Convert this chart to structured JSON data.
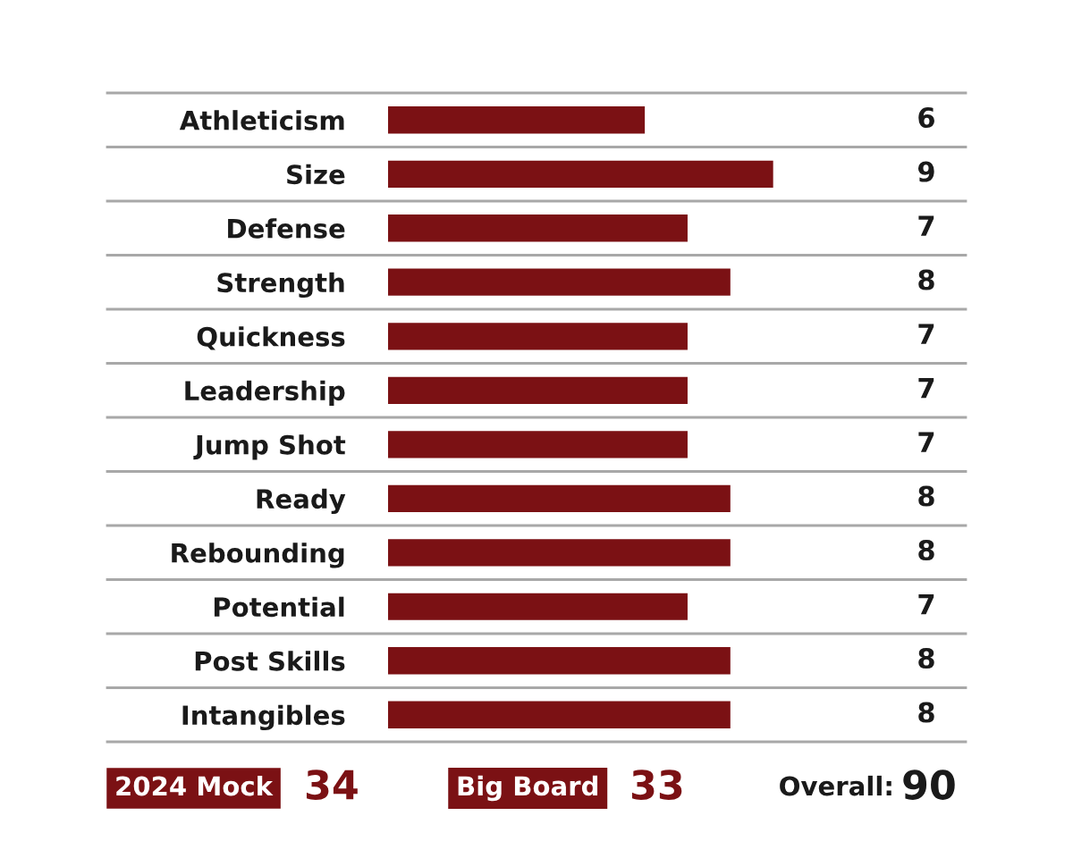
{
  "chart_data": {
    "type": "bar",
    "orientation": "horizontal",
    "categories": [
      "Athleticism",
      "Size",
      "Defense",
      "Strength",
      "Quickness",
      "Leadership",
      "Jump Shot",
      "Ready",
      "Rebounding",
      "Potential",
      "Post Skills",
      "Intangibles"
    ],
    "values": [
      6,
      9,
      7,
      8,
      7,
      7,
      7,
      8,
      8,
      7,
      8,
      8
    ],
    "color": "#7b1114",
    "data_labels": true,
    "grid": "y",
    "tick_labels": "y",
    "annotations": [
      "2024 Mock",
      "34",
      "Big Board",
      "33",
      "Overall:",
      "90"
    ]
  }
}
